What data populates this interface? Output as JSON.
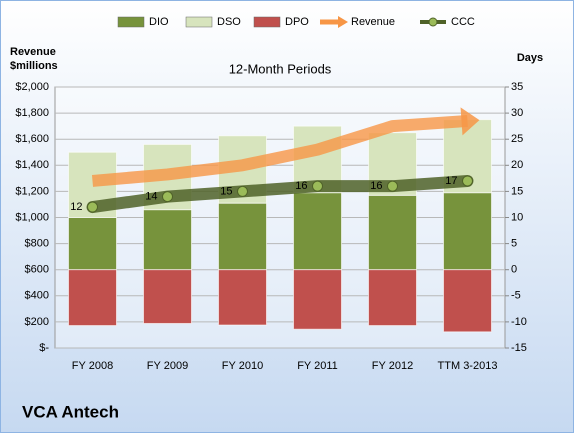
{
  "chart_data": {
    "type": "bar",
    "title": "12-Month Periods",
    "ylabel": [
      "Revenue",
      "$millions"
    ],
    "y2label": "Days",
    "footer": "VCA Antech",
    "categories": [
      "FY 2008",
      "FY 2009",
      "FY 2010",
      "FY 2011",
      "FY 2012",
      "TTM 3-2013"
    ],
    "series": [
      {
        "name": "DIO",
        "type": "bar",
        "axis": "y2",
        "color": "#77933c",
        "values": [
          10,
          11.5,
          12.75,
          14.75,
          14.25,
          14.75
        ]
      },
      {
        "name": "DSO",
        "type": "bar",
        "axis": "y2",
        "color": "#d7e4bd",
        "values": [
          12.5,
          12.5,
          12.9,
          12.75,
          12,
          14
        ]
      },
      {
        "name": "DPO",
        "type": "bar",
        "axis": "y2",
        "color": "#c0504d",
        "values": [
          -10.7,
          -10.3,
          -10.6,
          -11.4,
          -10.7,
          -11.9
        ]
      },
      {
        "name": "Revenue",
        "type": "line",
        "color": "#f79646",
        "values": [
          1280,
          1330,
          1400,
          1520,
          1700,
          1740
        ]
      },
      {
        "name": "CCC",
        "type": "line",
        "axis": "y2",
        "color": "#4f6228",
        "values": [
          12,
          14,
          15,
          16,
          16,
          17
        ]
      }
    ],
    "ylim": [
      0,
      2000
    ],
    "yticks": [
      {
        "value": 0,
        "label": "$-"
      },
      {
        "value": 200,
        "label": "$200"
      },
      {
        "value": 400,
        "label": "$400"
      },
      {
        "value": 600,
        "label": "$600"
      },
      {
        "value": 800,
        "label": "$800"
      },
      {
        "value": 1000,
        "label": "$1,000"
      },
      {
        "value": 1200,
        "label": "$1,200"
      },
      {
        "value": 1400,
        "label": "$1,400"
      },
      {
        "value": 1600,
        "label": "$1,600"
      },
      {
        "value": 1800,
        "label": "$1,800"
      },
      {
        "value": 2000,
        "label": "$2,000"
      }
    ],
    "y2lim": [
      -15,
      35
    ],
    "y2ticks": [
      -15,
      -10,
      -5,
      0,
      5,
      10,
      15,
      20,
      25,
      30,
      35
    ],
    "grid": true
  }
}
